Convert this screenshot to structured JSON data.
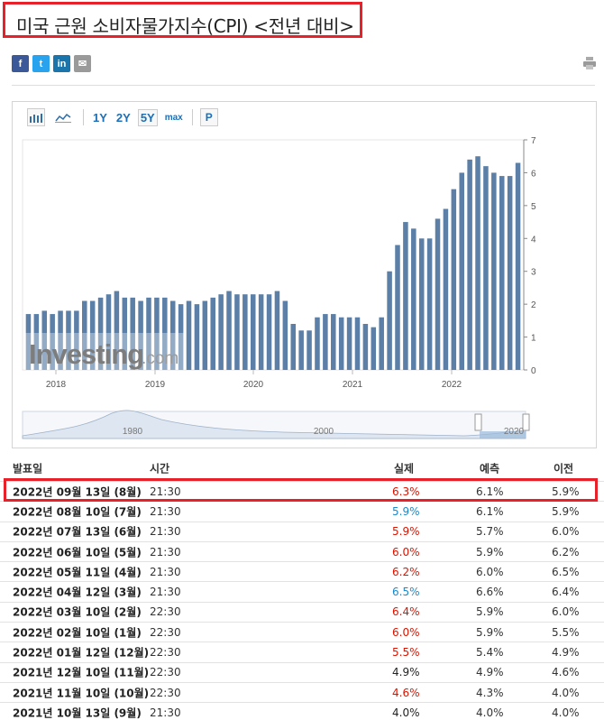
{
  "title": "미국 근원 소비자물가지수(CPI) <전년 대비>",
  "share": [
    "f",
    "t",
    "in",
    "✉"
  ],
  "toolbar": {
    "ranges": [
      "1Y",
      "2Y",
      "5Y",
      "max"
    ],
    "active_range": "5Y",
    "p_button": "P"
  },
  "navigator": {
    "labels": [
      "1980",
      "2000",
      "2020"
    ]
  },
  "watermark": {
    "brand": "Investing",
    "suffix": ".com"
  },
  "chart_data": {
    "type": "bar",
    "title": "",
    "xlabel": "",
    "ylabel": "",
    "ylim": [
      0,
      7
    ],
    "yticks": [
      "0",
      "1",
      "2",
      "3",
      "4",
      "5",
      "6",
      "7"
    ],
    "xticks": [
      "2018",
      "2019",
      "2020",
      "2021",
      "2022"
    ],
    "values": [
      1.7,
      1.7,
      1.8,
      1.7,
      1.8,
      1.8,
      1.8,
      2.1,
      2.1,
      2.2,
      2.3,
      2.4,
      2.2,
      2.2,
      2.1,
      2.2,
      2.2,
      2.2,
      2.1,
      2.0,
      2.1,
      2.0,
      2.1,
      2.2,
      2.3,
      2.4,
      2.3,
      2.3,
      2.3,
      2.3,
      2.3,
      2.4,
      2.1,
      1.4,
      1.2,
      1.2,
      1.6,
      1.7,
      1.7,
      1.6,
      1.6,
      1.6,
      1.4,
      1.3,
      1.6,
      3.0,
      3.8,
      4.5,
      4.3,
      4.0,
      4.0,
      4.6,
      4.9,
      5.5,
      6.0,
      6.4,
      6.5,
      6.2,
      6.0,
      5.9,
      5.9,
      6.3
    ]
  },
  "table": {
    "headers": {
      "date": "발표일",
      "time": "시간",
      "actual": "실제",
      "forecast": "예측",
      "previous": "이전"
    },
    "rows": [
      {
        "date": "2022년 09월 13일 (8월)",
        "time": "21:30",
        "actual": "6.3%",
        "forecast": "6.1%",
        "previous": "5.9%",
        "color": "#d91400"
      },
      {
        "date": "2022년 08월 10일 (7월)",
        "time": "21:30",
        "actual": "5.9%",
        "forecast": "6.1%",
        "previous": "5.9%",
        "color": "#1d88c8"
      },
      {
        "date": "2022년 07월 13일 (6월)",
        "time": "21:30",
        "actual": "5.9%",
        "forecast": "5.7%",
        "previous": "6.0%",
        "color": "#d91400"
      },
      {
        "date": "2022년 06월 10일 (5월)",
        "time": "21:30",
        "actual": "6.0%",
        "forecast": "5.9%",
        "previous": "6.2%",
        "color": "#d91400"
      },
      {
        "date": "2022년 05월 11일 (4월)",
        "time": "21:30",
        "actual": "6.2%",
        "forecast": "6.0%",
        "previous": "6.5%",
        "color": "#d91400"
      },
      {
        "date": "2022년 04월 12일 (3월)",
        "time": "21:30",
        "actual": "6.5%",
        "forecast": "6.6%",
        "previous": "6.4%",
        "color": "#1d88c8"
      },
      {
        "date": "2022년 03월 10일 (2월)",
        "time": "22:30",
        "actual": "6.4%",
        "forecast": "5.9%",
        "previous": "6.0%",
        "color": "#d91400"
      },
      {
        "date": "2022년 02월 10일 (1월)",
        "time": "22:30",
        "actual": "6.0%",
        "forecast": "5.9%",
        "previous": "5.5%",
        "color": "#d91400"
      },
      {
        "date": "2022년 01월 12일 (12월)",
        "time": "22:30",
        "actual": "5.5%",
        "forecast": "5.4%",
        "previous": "4.9%",
        "color": "#d91400"
      },
      {
        "date": "2021년 12월 10일 (11월)",
        "time": "22:30",
        "actual": "4.9%",
        "forecast": "4.9%",
        "previous": "4.6%",
        "color": "#222222"
      },
      {
        "date": "2021년 11월 10일 (10월)",
        "time": "22:30",
        "actual": "4.6%",
        "forecast": "4.3%",
        "previous": "4.0%",
        "color": "#d91400"
      },
      {
        "date": "2021년 10월 13일 (9월)",
        "time": "21:30",
        "actual": "4.0%",
        "forecast": "4.0%",
        "previous": "4.0%",
        "color": "#222222"
      }
    ]
  },
  "colors": {
    "bar": "#5b7fa6",
    "highlight": "#e8202a",
    "up": "#d91400",
    "down": "#1d88c8"
  }
}
